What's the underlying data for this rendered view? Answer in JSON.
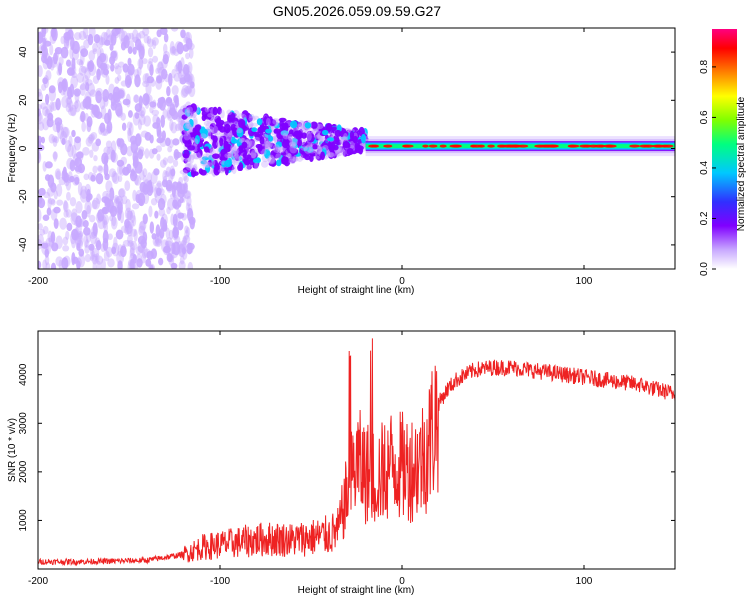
{
  "title": "GN05.2026.059.09.59.G27",
  "chart_data": [
    {
      "type": "heatmap",
      "title": "GN05.2026.059.09.59.G27",
      "xlabel": "Height of straight line (km)",
      "ylabel": "Frequency (Hz)",
      "xlim": [
        -200,
        150
      ],
      "ylim": [
        -50,
        50
      ],
      "xticks": [
        -200,
        -100,
        0,
        100
      ],
      "yticks": [
        -40,
        -20,
        0,
        20,
        40
      ],
      "xtick_labels": [
        "-200",
        "-100",
        "0",
        "100"
      ],
      "ytick_labels": [
        "-40",
        "-20",
        "0",
        "20",
        "40"
      ],
      "colorbar": {
        "label": "Normalized spectral amplitude",
        "range": [
          0,
          0.95
        ],
        "ticks": [
          0.0,
          0.2,
          0.4,
          0.6,
          0.8
        ],
        "tick_labels": [
          "0.0",
          "0.2",
          "0.4",
          "0.6",
          "0.8"
        ],
        "colormap": [
          "#ffffff",
          "#c8a8ff",
          "#8000ff",
          "#3030ff",
          "#00c8ff",
          "#00ff80",
          "#80ff00",
          "#ffff00",
          "#ff8000",
          "#ff0000",
          "#ff0080"
        ]
      },
      "features": [
        {
          "x_range": [
            -200,
            -120
          ],
          "freq_range": [
            -50,
            50
          ],
          "amplitude": 0.15,
          "description": "broadband noise"
        },
        {
          "x_range": [
            -120,
            -20
          ],
          "freq_range": [
            -15,
            15
          ],
          "amplitude": 0.3,
          "description": "converging signal"
        },
        {
          "x_range": [
            -20,
            150
          ],
          "freq_center": 1,
          "freq_width": 2,
          "amplitude": 0.5,
          "description": "stable carrier line"
        }
      ]
    },
    {
      "type": "line",
      "xlabel": "Height of straight line (km)",
      "ylabel": "SNR (10 * v/v)",
      "xlim": [
        -200,
        150
      ],
      "ylim": [
        0,
        4900
      ],
      "xticks": [
        -200,
        -100,
        0,
        100
      ],
      "yticks": [
        1000,
        2000,
        3000,
        4000
      ],
      "xtick_labels": [
        "-200",
        "-100",
        "0",
        "100"
      ],
      "ytick_labels": [
        "1000",
        "2000",
        "3000",
        "4000"
      ],
      "color": "#ee2222",
      "series": [
        {
          "name": "SNR",
          "x": [
            -200,
            -180,
            -160,
            -140,
            -120,
            -110,
            -100,
            -90,
            -80,
            -70,
            -60,
            -50,
            -40,
            -35,
            -30,
            -25,
            -20,
            -15,
            -10,
            -5,
            0,
            5,
            10,
            15,
            20,
            25,
            30,
            40,
            50,
            60,
            70,
            80,
            90,
            100,
            110,
            120,
            130,
            140,
            150
          ],
          "y": [
            150,
            150,
            160,
            180,
            300,
            450,
            500,
            550,
            600,
            620,
            600,
            650,
            700,
            800,
            1600,
            2200,
            2000,
            1900,
            2000,
            2200,
            2100,
            2100,
            2200,
            2600,
            3400,
            3700,
            3900,
            4100,
            4150,
            4150,
            4100,
            4050,
            4000,
            3950,
            3900,
            3850,
            3800,
            3700,
            3600
          ]
        }
      ]
    }
  ]
}
